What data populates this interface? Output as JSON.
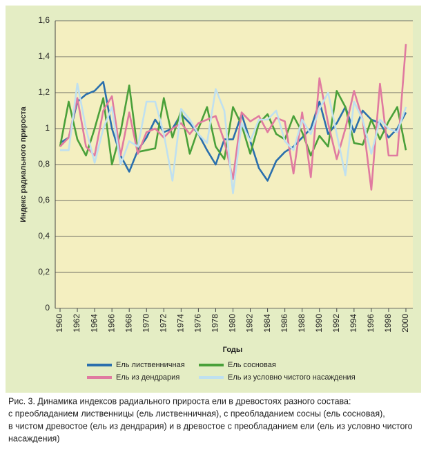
{
  "chart_data": {
    "type": "line",
    "ylabel": "Индекс радиального прироста",
    "xlabel": "Годы",
    "x": [
      1960,
      1961,
      1962,
      1963,
      1964,
      1965,
      1966,
      1967,
      1968,
      1969,
      1970,
      1971,
      1972,
      1973,
      1974,
      1975,
      1976,
      1977,
      1978,
      1979,
      1980,
      1981,
      1982,
      1983,
      1984,
      1985,
      1986,
      1987,
      1988,
      1989,
      1990,
      1991,
      1992,
      1993,
      1994,
      1995,
      1996,
      1997,
      1998,
      1999,
      2000
    ],
    "xlim": [
      1960,
      2000
    ],
    "xticks": [
      1960,
      1962,
      1964,
      1966,
      1968,
      1970,
      1972,
      1974,
      1976,
      1978,
      1980,
      1982,
      1984,
      1986,
      1988,
      1990,
      1992,
      1994,
      1996,
      1998,
      2000
    ],
    "ylim": [
      0,
      1.6
    ],
    "yticks": [
      0,
      {
        "value": 0.2,
        "label": "0,2"
      },
      {
        "value": 0.4,
        "label": "0,4"
      },
      {
        "value": 0.6,
        "label": "0,6"
      },
      {
        "value": 0.8,
        "label": "0,8"
      },
      1,
      {
        "value": 1.2,
        "label": "1,2"
      },
      {
        "value": 1.4,
        "label": "1,4"
      },
      {
        "value": 1.6,
        "label": "1,6"
      }
    ],
    "grid": true,
    "series": [
      {
        "name": "Ель лиственничная",
        "color": "#2a6fad",
        "values": [
          0.92,
          0.95,
          1.15,
          1.19,
          1.21,
          1.26,
          1.0,
          0.85,
          0.76,
          0.88,
          0.95,
          1.05,
          0.98,
          1.0,
          1.08,
          1.03,
          0.97,
          0.88,
          0.8,
          0.94,
          0.94,
          1.08,
          0.93,
          0.78,
          0.71,
          0.82,
          0.87,
          0.9,
          0.95,
          1.0,
          1.15,
          0.97,
          1.03,
          1.12,
          0.98,
          1.1,
          1.05,
          1.03,
          0.95,
          1.0,
          1.09
        ]
      },
      {
        "name": "Ель сосновая",
        "color": "#4aa03a",
        "values": [
          0.9,
          1.15,
          0.94,
          0.85,
          1.0,
          1.17,
          0.8,
          0.98,
          1.24,
          0.87,
          0.88,
          0.89,
          1.17,
          0.95,
          1.1,
          0.86,
          1.0,
          1.12,
          0.9,
          0.83,
          1.12,
          1.02,
          0.86,
          1.03,
          1.08,
          0.97,
          0.94,
          1.07,
          0.98,
          0.85,
          0.96,
          0.9,
          1.21,
          1.12,
          0.92,
          0.91,
          1.05,
          0.94,
          1.04,
          1.12,
          0.88
        ]
      },
      {
        "name": "Ель из дендрария",
        "color": "#e07aa0",
        "values": [
          0.9,
          0.95,
          1.17,
          0.9,
          0.85,
          1.1,
          1.18,
          0.85,
          1.09,
          0.86,
          0.98,
          1.0,
          0.95,
          1.0,
          1.03,
          0.97,
          1.03,
          1.05,
          1.07,
          0.93,
          0.72,
          1.09,
          1.04,
          1.07,
          0.98,
          1.06,
          1.04,
          0.75,
          1.09,
          0.73,
          1.28,
          1.03,
          0.83,
          1.0,
          1.21,
          1.05,
          0.66,
          1.25,
          0.85,
          0.85,
          1.47
        ]
      },
      {
        "name": "Ель из условно чистого насаждения",
        "color": "#bfe0f0",
        "values": [
          0.88,
          0.88,
          1.25,
          1.0,
          0.81,
          1.0,
          1.12,
          0.8,
          0.93,
          0.9,
          1.15,
          1.15,
          0.97,
          0.71,
          1.11,
          1.05,
          0.97,
          0.92,
          1.22,
          1.1,
          0.64,
          1.03,
          0.93,
          1.05,
          1.05,
          1.1,
          0.93,
          0.88,
          1.05,
          0.97,
          1.11,
          1.2,
          0.97,
          0.74,
          1.15,
          1.05,
          0.86,
          1.05,
          1.0,
          0.98,
          1.12
        ]
      }
    ],
    "caption": [
      "Рис. 3. Динамика индексов радиального прироста ели в древостоях разного состава:",
      "с преобладанием лиственницы (ель лиственничная), с преобладанием сосны (ель сосновая),",
      "в чистом древостое (ель из дендрария) и в древостое с преобладанием ели (ель из условно чистого",
      "насаждения)"
    ]
  }
}
